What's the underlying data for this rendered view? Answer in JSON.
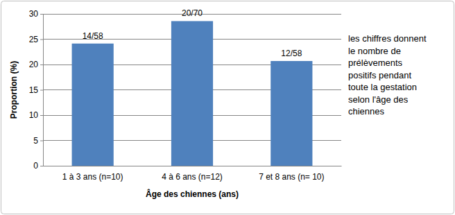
{
  "chart_data": {
    "type": "bar",
    "categories": [
      "1 à 3 ans (n=10)",
      "4 à 6 ans (n=12)",
      "7 et 8 ans (n= 10)"
    ],
    "values": [
      24.14,
      28.57,
      20.69
    ],
    "value_labels": [
      "14/58",
      "20/70",
      "12/58"
    ],
    "data_labels": true,
    "color": "#4f81bd",
    "x_label": "Âge des chiennes (ans)",
    "y_label": "Proportion (%)",
    "ylim": [
      0,
      30
    ],
    "yticks": [
      0,
      5,
      10,
      15,
      20,
      25,
      30
    ],
    "grid": true,
    "annotation": [
      "les chiffres donnent",
      "le nombre de",
      "prélèvements",
      "positifs pendant",
      "toute la gestation",
      "selon l'âge des",
      "chiennes"
    ]
  }
}
